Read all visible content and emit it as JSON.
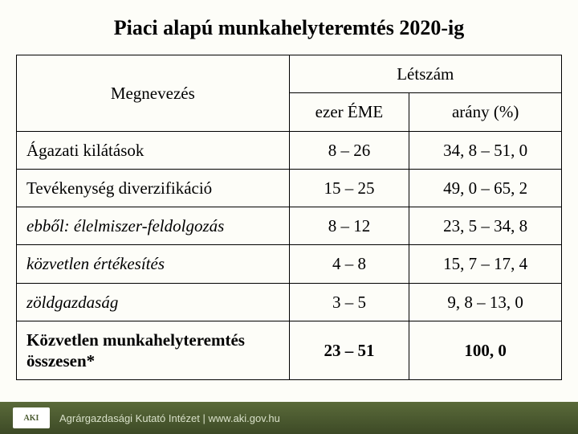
{
  "title": "Piaci alapú munkahelyteremtés 2020-ig",
  "table": {
    "header_name": "Megnevezés",
    "header_group": "Létszám",
    "header_col1": "ezer ÉME",
    "header_col2": "arány (%)",
    "rows": [
      {
        "label": "Ágazati kilátások",
        "c1": "8 – 26",
        "c2": "34, 8 – 51, 0",
        "cls": ""
      },
      {
        "label": "Tevékenység diverzifikáció",
        "c1": "15 – 25",
        "c2": "49, 0 – 65, 2",
        "cls": ""
      },
      {
        "label": "ebből: élelmiszer-feldolgozás",
        "c1": "8 – 12",
        "c2": "23, 5 – 34, 8",
        "cls": "indent1"
      },
      {
        "label": "közvetlen értékesítés",
        "c1": "4 – 8",
        "c2": "15, 7 – 17, 4",
        "cls": "indent2"
      },
      {
        "label": "zöldgazdaság",
        "c1": "3 – 5",
        "c2": "9, 8 – 13, 0",
        "cls": "indent2"
      },
      {
        "label": "Közvetlen munkahelyteremtés összesen*",
        "c1": "23 – 51",
        "c2": "100, 0",
        "cls": "bold"
      }
    ]
  },
  "footer": {
    "logo": "AKI",
    "text": "Agrárgazdasági Kutató Intézet | www.aki.gov.hu"
  },
  "styling": {
    "page_bg": "#fdfdf8",
    "border_color": "#000000",
    "title_fontsize": 26,
    "cell_fontsize": 21,
    "footer_bg_top": "#5a6a3a",
    "footer_bg_bottom": "#3d4a26",
    "footer_text_color": "#d8e0c8"
  }
}
